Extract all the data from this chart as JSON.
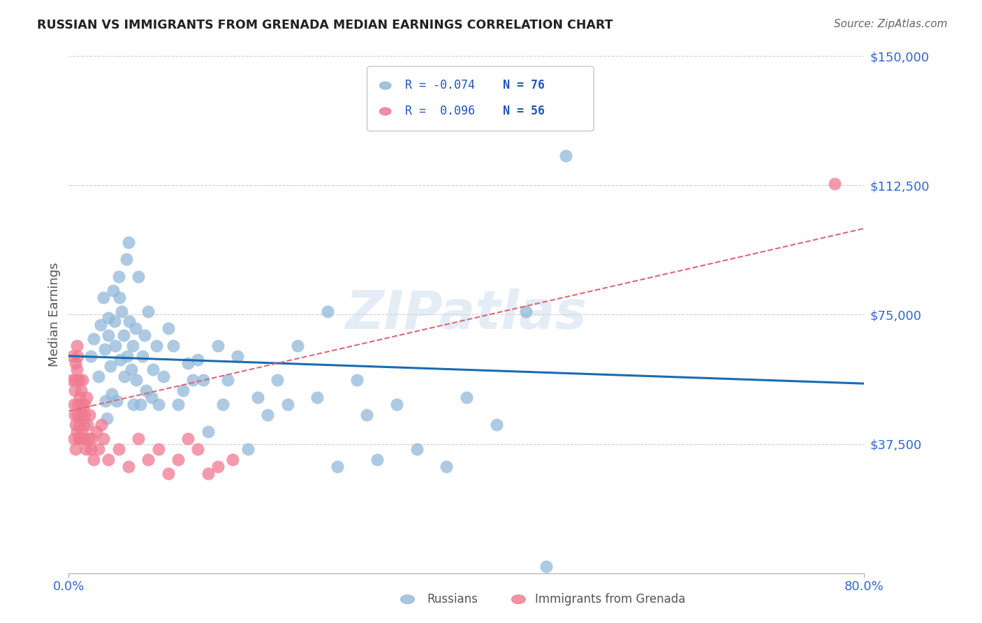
{
  "title": "RUSSIAN VS IMMIGRANTS FROM GRENADA MEDIAN EARNINGS CORRELATION CHART",
  "source": "Source: ZipAtlas.com",
  "ylabel": "Median Earnings",
  "watermark": "ZIPatlas",
  "xlim": [
    0.0,
    0.8
  ],
  "ylim": [
    0,
    150000
  ],
  "yticks": [
    0,
    37500,
    75000,
    112500,
    150000
  ],
  "ytick_labels": [
    "",
    "$37,500",
    "$75,000",
    "$112,500",
    "$150,000"
  ],
  "xtick_labels": [
    "0.0%",
    "80.0%"
  ],
  "legend_R1": "-0.074",
  "legend_N1": "76",
  "legend_R2": "0.096",
  "legend_N2": "56",
  "trend_russian_color": "#1b6bb0",
  "trend_grenada_color": "#d9697a",
  "blue_color": "#92b9d9",
  "pink_color": "#f07a90",
  "background_color": "#ffffff",
  "grid_color": "#cccccc",
  "russian_x": [
    0.022,
    0.025,
    0.03,
    0.032,
    0.035,
    0.036,
    0.037,
    0.038,
    0.04,
    0.04,
    0.042,
    0.043,
    0.045,
    0.046,
    0.047,
    0.048,
    0.05,
    0.051,
    0.052,
    0.053,
    0.055,
    0.056,
    0.058,
    0.059,
    0.06,
    0.061,
    0.063,
    0.064,
    0.065,
    0.067,
    0.068,
    0.07,
    0.072,
    0.074,
    0.076,
    0.078,
    0.08,
    0.083,
    0.085,
    0.088,
    0.09,
    0.095,
    0.1,
    0.105,
    0.11,
    0.115,
    0.12,
    0.125,
    0.13,
    0.135,
    0.14,
    0.15,
    0.155,
    0.16,
    0.17,
    0.18,
    0.19,
    0.2,
    0.21,
    0.22,
    0.23,
    0.25,
    0.26,
    0.27,
    0.29,
    0.3,
    0.31,
    0.33,
    0.35,
    0.38,
    0.4,
    0.43,
    0.46,
    0.48,
    0.5,
    0.51
  ],
  "russian_y": [
    63000,
    68000,
    57000,
    72000,
    80000,
    65000,
    50000,
    45000,
    69000,
    74000,
    60000,
    52000,
    82000,
    73000,
    66000,
    50000,
    86000,
    80000,
    62000,
    76000,
    69000,
    57000,
    91000,
    63000,
    96000,
    73000,
    59000,
    66000,
    49000,
    71000,
    56000,
    86000,
    49000,
    63000,
    69000,
    53000,
    76000,
    51000,
    59000,
    66000,
    49000,
    57000,
    71000,
    66000,
    49000,
    53000,
    61000,
    56000,
    62000,
    56000,
    41000,
    66000,
    49000,
    56000,
    63000,
    36000,
    51000,
    46000,
    56000,
    49000,
    66000,
    51000,
    76000,
    31000,
    56000,
    46000,
    33000,
    49000,
    36000,
    31000,
    51000,
    43000,
    76000,
    2000,
    121000,
    136000
  ],
  "grenada_x": [
    0.003,
    0.004,
    0.005,
    0.005,
    0.006,
    0.006,
    0.007,
    0.007,
    0.007,
    0.007,
    0.008,
    0.008,
    0.008,
    0.009,
    0.009,
    0.009,
    0.01,
    0.01,
    0.01,
    0.011,
    0.011,
    0.012,
    0.012,
    0.013,
    0.013,
    0.014,
    0.015,
    0.015,
    0.016,
    0.016,
    0.017,
    0.018,
    0.019,
    0.02,
    0.021,
    0.022,
    0.023,
    0.025,
    0.028,
    0.03,
    0.033,
    0.035,
    0.04,
    0.05,
    0.06,
    0.07,
    0.08,
    0.09,
    0.1,
    0.11,
    0.12,
    0.13,
    0.14,
    0.15,
    0.165,
    0.77
  ],
  "grenada_y": [
    56000,
    63000,
    49000,
    39000,
    53000,
    46000,
    61000,
    56000,
    43000,
    36000,
    66000,
    41000,
    59000,
    46000,
    63000,
    49000,
    39000,
    56000,
    43000,
    51000,
    39000,
    46000,
    53000,
    41000,
    49000,
    56000,
    43000,
    39000,
    46000,
    49000,
    36000,
    51000,
    43000,
    39000,
    46000,
    36000,
    39000,
    33000,
    41000,
    36000,
    43000,
    39000,
    33000,
    36000,
    31000,
    39000,
    33000,
    36000,
    29000,
    33000,
    39000,
    36000,
    29000,
    31000,
    33000,
    113000
  ]
}
